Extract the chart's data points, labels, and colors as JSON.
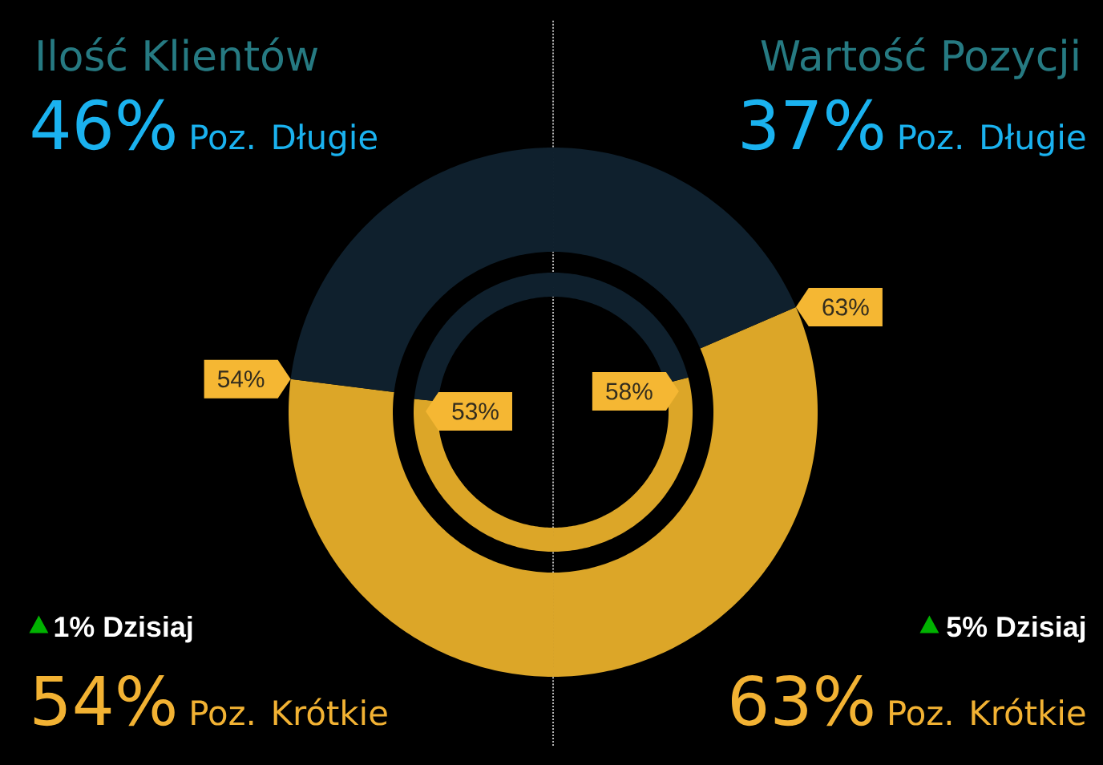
{
  "chart_data": [
    {
      "type": "donut",
      "title": "Ilość Klientów",
      "categories": [
        "Poz. Długie",
        "Poz. Krótkie"
      ],
      "colors": [
        "#0f202d",
        "#dca628"
      ],
      "series": [
        {
          "values": [
            46,
            54
          ],
          "value_labels": [
            "46%",
            "54%"
          ]
        },
        {
          "values": [
            47,
            53
          ],
          "value_labels": [
            null,
            "53%"
          ]
        }
      ],
      "annotations": [
        "54%",
        "1% Dzisiaj"
      ]
    },
    {
      "type": "donut",
      "title": "Wartość Pozycji",
      "categories": [
        "Poz. Długie",
        "Poz. Krótkie"
      ],
      "colors": [
        "#0f202d",
        "#dca628"
      ],
      "series": [
        {
          "values": [
            37,
            63
          ],
          "value_labels": [
            "37%",
            "63%"
          ]
        },
        {
          "values": [
            42,
            58
          ],
          "value_labels": [
            null,
            "58%"
          ]
        }
      ],
      "annotations": [
        "63%",
        "5% Dzisiaj"
      ]
    }
  ]
}
